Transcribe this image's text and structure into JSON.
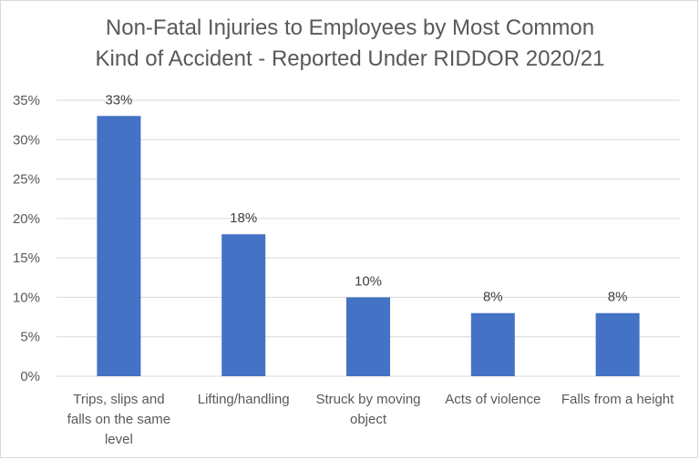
{
  "chart_data": {
    "type": "bar",
    "title_lines": [
      "Non-Fatal Injuries to Employees by Most Common",
      "Kind of Accident - Reported Under RIDDOR 2020/21"
    ],
    "categories": [
      [
        "Trips, slips and",
        "falls on the same",
        "level"
      ],
      [
        "Lifting/handling"
      ],
      [
        "Struck by moving",
        "object"
      ],
      [
        "Acts of violence"
      ],
      [
        "Falls from a height"
      ]
    ],
    "values": [
      33,
      18,
      10,
      8,
      8
    ],
    "data_labels": [
      "33%",
      "18%",
      "10%",
      "8%",
      "8%"
    ],
    "y_ticks": [
      "0%",
      "5%",
      "10%",
      "15%",
      "20%",
      "25%",
      "30%",
      "35%"
    ],
    "ylim": [
      0,
      35
    ],
    "grid": true,
    "bar_color": "#4472c4",
    "grid_color": "#d9d9d9"
  }
}
